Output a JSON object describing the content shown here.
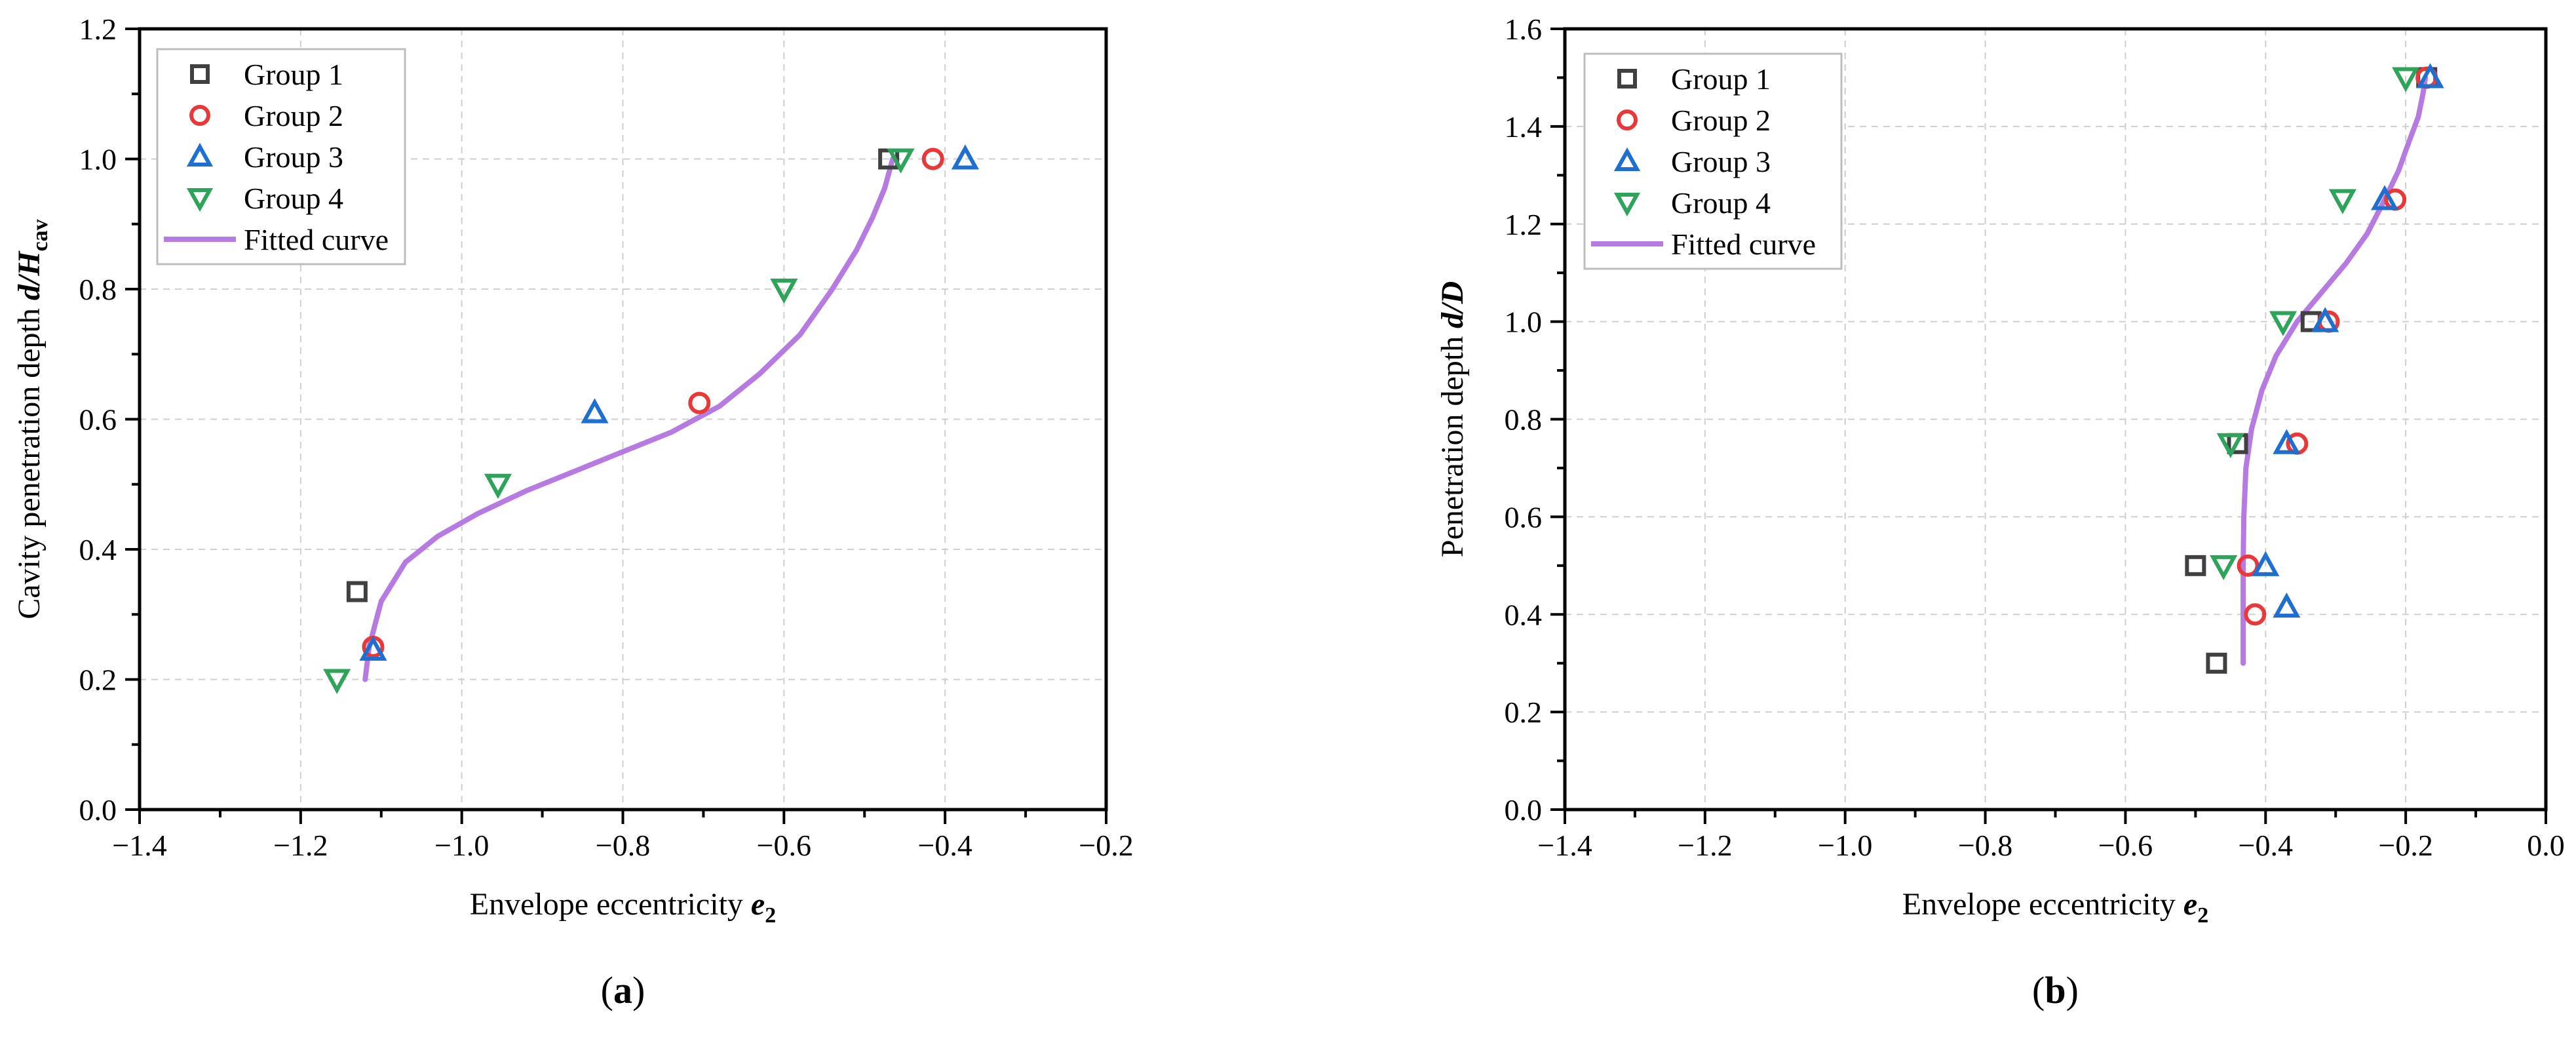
{
  "chart_data": [
    {
      "type": "scatter",
      "panel_label": "(a)",
      "xlabel": {
        "main": "Envelope eccentricity ",
        "italic": "e",
        "sub": "2"
      },
      "ylabel": {
        "main": "Cavity penetration depth ",
        "italic": "d/H",
        "sub": "cav"
      },
      "xlim": [
        -1.4,
        -0.2
      ],
      "ylim": [
        0.0,
        1.2
      ],
      "xticks": [
        -1.4,
        -1.2,
        -1.0,
        -0.8,
        -0.6,
        -0.4,
        -0.2
      ],
      "xtick_labels": [
        "−1.4",
        "−1.2",
        "−1.0",
        "−0.8",
        "−0.6",
        "−0.4",
        "−0.2"
      ],
      "yticks": [
        0.0,
        0.2,
        0.4,
        0.6,
        0.8,
        1.0,
        1.2
      ],
      "ytick_labels": [
        "0.0",
        "0.2",
        "0.4",
        "0.6",
        "0.8",
        "1.0",
        "1.2"
      ],
      "grid": true,
      "legend_position": "top-left",
      "series": [
        {
          "name": "Group 1",
          "marker": "square",
          "color": "#404040",
          "x": [
            -1.13,
            -0.47
          ],
          "y": [
            0.335,
            1.0
          ]
        },
        {
          "name": "Group 2",
          "marker": "circle",
          "color": "#e8393a",
          "x": [
            -1.11,
            -0.705,
            -0.415
          ],
          "y": [
            0.25,
            0.625,
            1.0
          ]
        },
        {
          "name": "Group 3",
          "marker": "triangle-up",
          "color": "#1f6fd0",
          "x": [
            -1.11,
            -0.835,
            -0.375
          ],
          "y": [
            0.245,
            0.61,
            1.0
          ]
        },
        {
          "name": "Group 4",
          "marker": "triangle-down",
          "color": "#2ea35a",
          "x": [
            -1.155,
            -0.955,
            -0.6,
            -0.455
          ],
          "y": [
            0.2,
            0.5,
            0.8,
            1.0
          ]
        }
      ],
      "fitted_curve": {
        "name": "Fitted curve",
        "color": "#b57be0",
        "x": [
          -1.12,
          -1.115,
          -1.1,
          -1.07,
          -1.03,
          -0.98,
          -0.92,
          -0.86,
          -0.8,
          -0.74,
          -0.68,
          -0.63,
          -0.58,
          -0.54,
          -0.51,
          -0.49,
          -0.475,
          -0.465
        ],
        "y": [
          0.2,
          0.25,
          0.32,
          0.38,
          0.42,
          0.455,
          0.49,
          0.52,
          0.55,
          0.58,
          0.62,
          0.67,
          0.73,
          0.8,
          0.86,
          0.91,
          0.955,
          1.0
        ]
      }
    },
    {
      "type": "scatter",
      "panel_label": "(b)",
      "xlabel": {
        "main": "Envelope eccentricity ",
        "italic": "e",
        "sub": "2"
      },
      "ylabel": {
        "main": "Penetration depth ",
        "italic": "d/D",
        "sub": ""
      },
      "xlim": [
        -1.4,
        0.0
      ],
      "ylim": [
        0.0,
        1.6
      ],
      "xticks": [
        -1.4,
        -1.2,
        -1.0,
        -0.8,
        -0.6,
        -0.4,
        -0.2,
        0.0
      ],
      "xtick_labels": [
        "−1.4",
        "−1.2",
        "−1.0",
        "−0.8",
        "−0.6",
        "−0.4",
        "−0.2",
        "0.0"
      ],
      "yticks": [
        0.0,
        0.2,
        0.4,
        0.6,
        0.8,
        1.0,
        1.2,
        1.4,
        1.6
      ],
      "ytick_labels": [
        "0.0",
        "0.2",
        "0.4",
        "0.6",
        "0.8",
        "1.0",
        "1.2",
        "1.4",
        "1.6"
      ],
      "grid": true,
      "legend_position": "top-left",
      "series": [
        {
          "name": "Group 1",
          "marker": "square",
          "color": "#404040",
          "x": [
            -0.47,
            -0.5,
            -0.44,
            -0.335,
            -0.17
          ],
          "y": [
            0.3,
            0.5,
            0.75,
            1.0,
            1.5
          ]
        },
        {
          "name": "Group 2",
          "marker": "circle",
          "color": "#e8393a",
          "x": [
            -0.415,
            -0.425,
            -0.355,
            -0.31,
            -0.215,
            -0.17
          ],
          "y": [
            0.4,
            0.5,
            0.75,
            1.0,
            1.25,
            1.5
          ]
        },
        {
          "name": "Group 3",
          "marker": "triangle-up",
          "color": "#1f6fd0",
          "x": [
            -0.37,
            -0.4,
            -0.37,
            -0.315,
            -0.23,
            -0.165
          ],
          "y": [
            0.415,
            0.5,
            0.75,
            1.0,
            1.25,
            1.5
          ]
        },
        {
          "name": "Group 4",
          "marker": "triangle-down",
          "color": "#2ea35a",
          "x": [
            -0.46,
            -0.45,
            -0.375,
            -0.29,
            -0.2
          ],
          "y": [
            0.5,
            0.75,
            1.0,
            1.25,
            1.5
          ]
        }
      ],
      "fitted_curve": {
        "name": "Fitted curve",
        "color": "#b57be0",
        "x": [
          -0.432,
          -0.432,
          -0.431,
          -0.428,
          -0.42,
          -0.405,
          -0.385,
          -0.355,
          -0.32,
          -0.285,
          -0.255,
          -0.23,
          -0.21,
          -0.195,
          -0.182,
          -0.175,
          -0.172
        ],
        "y": [
          0.3,
          0.5,
          0.6,
          0.7,
          0.78,
          0.86,
          0.93,
          1.0,
          1.06,
          1.12,
          1.18,
          1.25,
          1.31,
          1.37,
          1.42,
          1.47,
          1.5
        ]
      }
    }
  ]
}
